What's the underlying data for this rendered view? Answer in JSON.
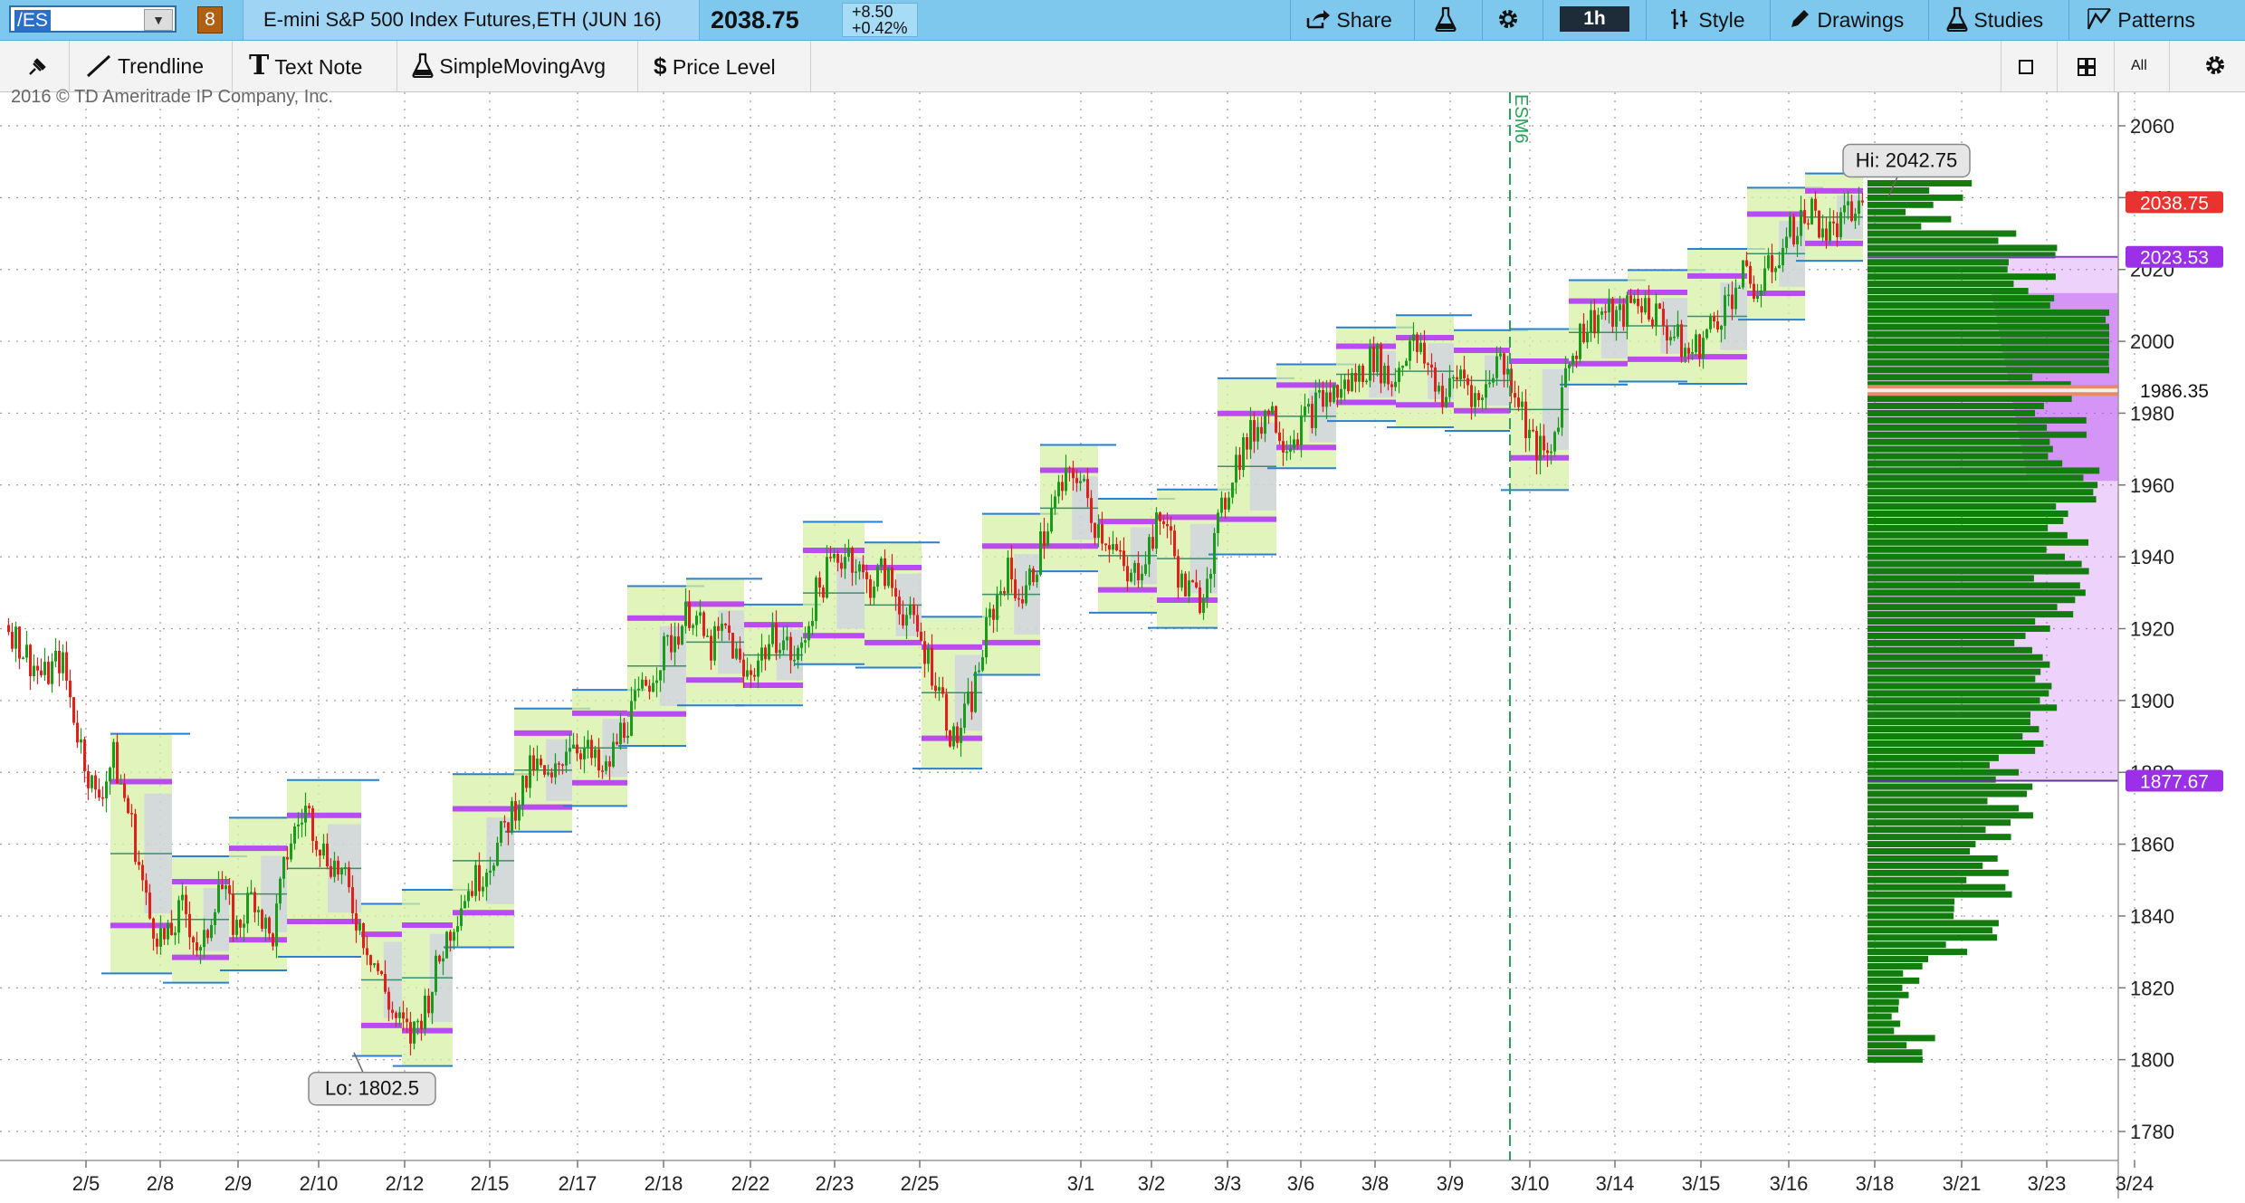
{
  "topbar": {
    "symbol": "/ES",
    "symbol_badge": "8",
    "description": "E-mini S&P 500 Index Futures,ETH (JUN 16)",
    "last_price": "2038.75",
    "change": "+8.50",
    "change_pct": "+0.42%",
    "share_label": "Share",
    "interval": "1h",
    "style_label": "Style",
    "drawings_label": "Drawings",
    "studies_label": "Studies",
    "patterns_label": "Patterns"
  },
  "toolbar2": {
    "trendline": "Trendline",
    "text_note": "Text Note",
    "sma": "SimpleMovingAvg",
    "price_level": "Price Level",
    "all_label": "All"
  },
  "copyright": "2016 © TD Ameritrade IP Company, Inc.",
  "colors": {
    "up": "#1a9c1a",
    "down": "#e0201b",
    "profile": "#137c0f",
    "value_area": "#b84cf0",
    "poc": "#e58a6a",
    "last_price_tag": "#e8332e",
    "vwap_tag": "#9b30e8",
    "volume": "#c8f4f8",
    "expiry_line": "#2aa05a"
  },
  "chart_data": {
    "type": "candlestick",
    "title": "E-mini S&P 500 Index Futures,ETH (JUN 16)",
    "interval": "1h",
    "ylim": [
      1772,
      2070
    ],
    "y_ticks": [
      2060,
      2040,
      2020,
      2000,
      1980,
      1960,
      1940,
      1920,
      1900,
      1880,
      1860,
      1840,
      1820,
      1800,
      1780
    ],
    "x_tick_labels": [
      "2/5",
      "2/8",
      "2/9",
      "2/10",
      "2/12",
      "2/15",
      "2/17",
      "2/18",
      "2/22",
      "2/23",
      "2/25",
      "3/1",
      "3/2",
      "3/3",
      "3/6",
      "3/8",
      "3/9",
      "3/10",
      "3/14",
      "3/15",
      "3/16",
      "3/18",
      "3/21",
      "3/23",
      "3/24"
    ],
    "close_path": [
      1921,
      1913,
      1906,
      1912,
      1890,
      1872,
      1884,
      1866,
      1840,
      1832,
      1843,
      1828,
      1850,
      1836,
      1847,
      1832,
      1860,
      1870,
      1858,
      1852,
      1838,
      1826,
      1812,
      1806,
      1818,
      1834,
      1846,
      1852,
      1860,
      1872,
      1882,
      1876,
      1890,
      1886,
      1878,
      1892,
      1900,
      1910,
      1918,
      1926,
      1914,
      1920,
      1906,
      1913,
      1919,
      1910,
      1928,
      1938,
      1942,
      1932,
      1936,
      1926,
      1918,
      1906,
      1888,
      1900,
      1922,
      1936,
      1928,
      1944,
      1958,
      1964,
      1950,
      1944,
      1932,
      1942,
      1952,
      1932,
      1928,
      1946,
      1966,
      1974,
      1982,
      1972,
      1978,
      1984,
      1986,
      1990,
      1996,
      1988,
      2000,
      1994,
      1984,
      1992,
      1982,
      1996,
      1988,
      1972,
      1966,
      1994,
      2004,
      2008,
      2006,
      2012,
      2008,
      2002,
      1996,
      2002,
      2010,
      2018,
      2014,
      2024,
      2032,
      2036,
      2030,
      2034,
      2038.75
    ],
    "annotations": {
      "high": "Hi: 2042.75",
      "low": "Lo: 1802.5",
      "expiry": "ESM6",
      "last_price": "2038.75",
      "vwap_upper": "2023.53",
      "poc": "1986.35",
      "value_area_low": "1877.67"
    },
    "profile_levels": [
      1800,
      2045
    ],
    "value_area": [
      1877.67,
      2023.53
    ],
    "poc_price": 1986.35
  }
}
